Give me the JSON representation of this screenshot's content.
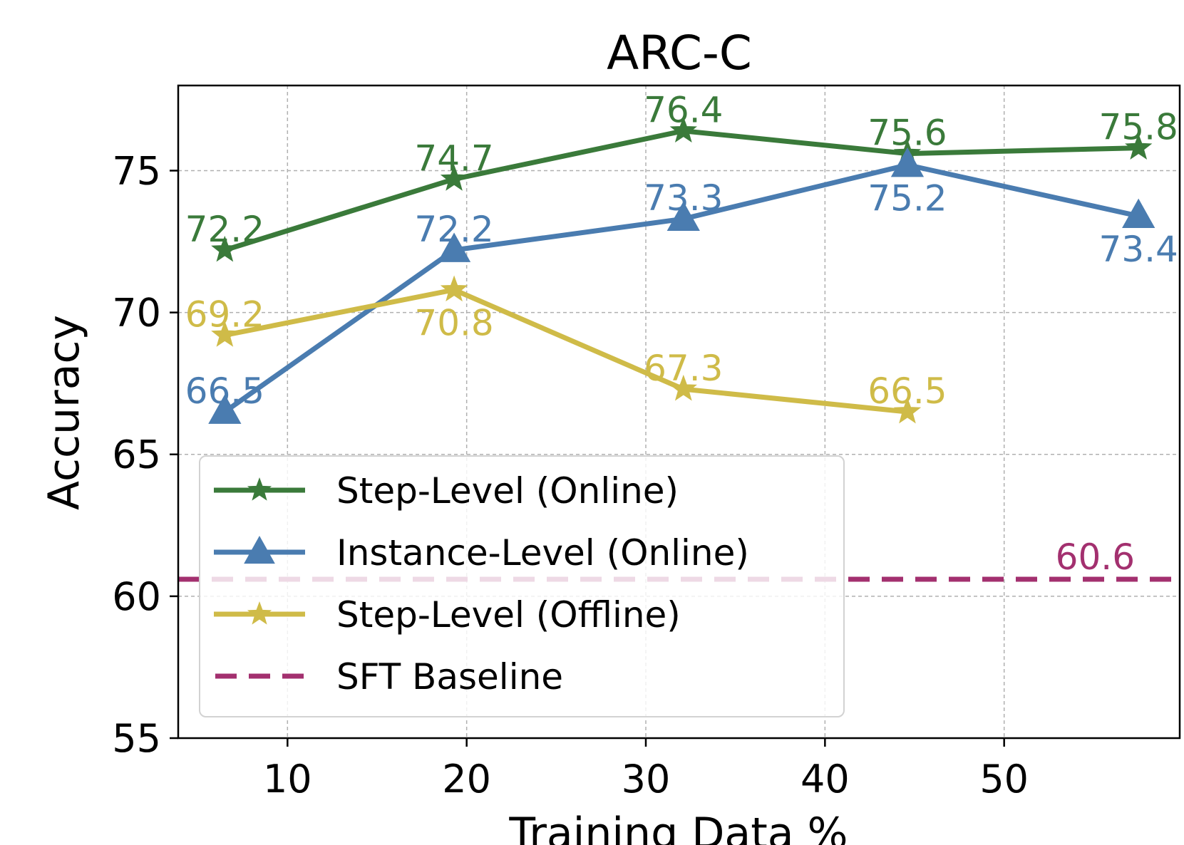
{
  "chart_data": {
    "type": "line",
    "title": "ARC-C",
    "xlabel": "Training Data %",
    "ylabel": "Accuracy",
    "xlim": [
      3.9,
      59.8
    ],
    "ylim": [
      55,
      78
    ],
    "xticks": [
      10,
      20,
      30,
      40,
      50
    ],
    "yticks": [
      55,
      60,
      65,
      70,
      75
    ],
    "grid": true,
    "legend_position": "lower-left",
    "series": [
      {
        "name": "Step-Level (Online)",
        "color": "#3a7a3a",
        "marker": "star",
        "x": [
          6.5,
          19.3,
          32.1,
          44.6,
          57.5
        ],
        "values": [
          72.2,
          74.7,
          76.4,
          75.6,
          75.8
        ],
        "labels": [
          "72.2",
          "74.7",
          "76.4",
          "75.6",
          "75.8"
        ],
        "label_pos": [
          "above",
          "above",
          "above",
          "above",
          "above"
        ]
      },
      {
        "name": "Instance-Level (Online)",
        "color": "#4a7cb0",
        "marker": "triangle",
        "x": [
          6.5,
          19.3,
          32.1,
          44.6,
          57.5
        ],
        "values": [
          66.5,
          72.2,
          73.3,
          75.2,
          73.4
        ],
        "labels": [
          "66.5",
          "72.2",
          "73.3",
          "75.2",
          "73.4"
        ],
        "label_pos": [
          "above",
          "above",
          "above",
          "below",
          "below"
        ]
      },
      {
        "name": "Step-Level (Offline)",
        "color": "#cfbb48",
        "marker": "star",
        "x": [
          6.5,
          19.3,
          32.1,
          44.6
        ],
        "values": [
          69.2,
          70.8,
          67.3,
          66.5
        ],
        "labels": [
          "69.2",
          "70.8",
          "67.3",
          "66.5"
        ],
        "label_pos": [
          "above",
          "below",
          "above",
          "above"
        ]
      }
    ],
    "baseline": {
      "name": "SFT Baseline",
      "value": 60.6,
      "label": "60.6",
      "color": "#a3306f",
      "style": "dashed"
    }
  }
}
